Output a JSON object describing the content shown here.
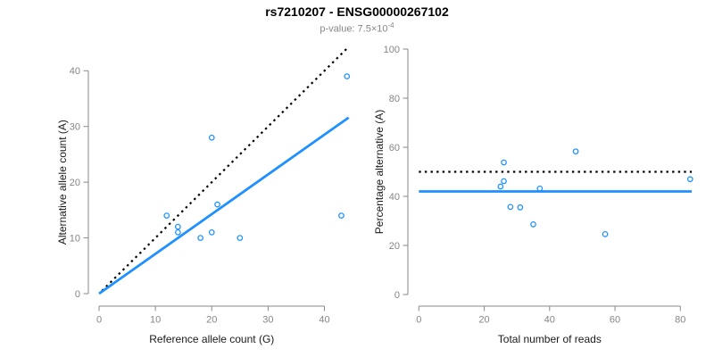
{
  "header": {
    "title": "rs7210207 - ENSG00000267102",
    "p_value_text": "p-value: 7.5×10",
    "p_value_exponent": "-4"
  },
  "colors": {
    "accent_blue": "#1E90FF",
    "dotted_black": "#000000",
    "axis_gray": "#8a8a8a",
    "tick_label_gray": "#858585",
    "axis_title_color": "#1a1a1a",
    "subtitle_gray": "#878787"
  },
  "chart_data": [
    {
      "type": "scatter",
      "name": "allele-counts-panel",
      "xlabel": "Reference allele count (G)",
      "ylabel": "Alternative allele count (A)",
      "xlim": [
        0,
        45
      ],
      "ylim": [
        0,
        44
      ],
      "xticks": [
        0,
        10,
        20,
        30,
        40
      ],
      "yticks": [
        0,
        10,
        20,
        30,
        40
      ],
      "grid": false,
      "legend": "none",
      "points": [
        [
          12,
          14
        ],
        [
          14,
          12
        ],
        [
          14,
          11
        ],
        [
          18,
          10
        ],
        [
          20,
          11
        ],
        [
          20,
          28
        ],
        [
          21,
          16
        ],
        [
          25,
          10
        ],
        [
          43,
          14
        ],
        [
          44,
          39
        ]
      ],
      "lines": [
        {
          "name": "identity-line",
          "style": "dotted",
          "color": "#000000",
          "x": [
            0.5,
            44.3
          ],
          "y": [
            0.5,
            44.3
          ]
        },
        {
          "name": "regression-line",
          "style": "solid",
          "color": "#1E90FF",
          "x": [
            0,
            44.3
          ],
          "y": [
            0,
            31.6
          ]
        }
      ]
    },
    {
      "type": "scatter",
      "name": "percentage-reads-panel",
      "xlabel": "Total number of reads",
      "ylabel": "Percentage alternative (A)",
      "xlim": [
        0,
        84
      ],
      "ylim": [
        0,
        100
      ],
      "xticks": [
        0,
        20,
        40,
        60,
        80
      ],
      "yticks": [
        0,
        20,
        40,
        60,
        80,
        100
      ],
      "grid": false,
      "legend": "none",
      "points": [
        [
          25,
          44.0
        ],
        [
          26,
          53.8
        ],
        [
          26,
          46.2
        ],
        [
          28,
          35.7
        ],
        [
          31,
          35.5
        ],
        [
          35,
          28.6
        ],
        [
          37,
          43.2
        ],
        [
          48,
          58.3
        ],
        [
          57,
          24.6
        ],
        [
          83,
          47.0
        ]
      ],
      "lines": [
        {
          "name": "expected-50pct-line",
          "style": "dotted",
          "color": "#000000",
          "x": [
            0,
            83.5
          ],
          "y": [
            50,
            50
          ]
        },
        {
          "name": "mean-percentage-line",
          "style": "solid",
          "color": "#1E90FF",
          "x": [
            0,
            83.5
          ],
          "y": [
            42,
            42
          ]
        }
      ]
    }
  ]
}
